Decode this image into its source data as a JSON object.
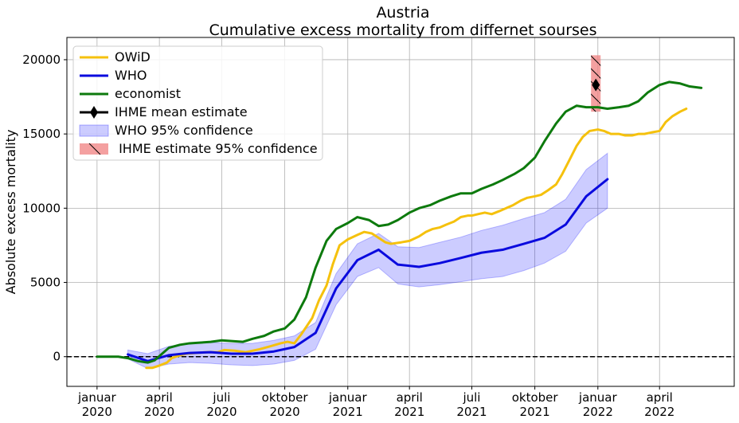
{
  "chart_data": {
    "type": "line",
    "title": "Austria",
    "subtitle": "Cumulative excess mortality from differnet sourses",
    "xlabel": "",
    "ylabel": "Absolute excess mortality",
    "xlim": [
      "2019-11-18",
      "2022-07-19"
    ],
    "ylim": [
      -2000,
      21500
    ],
    "grid": true,
    "legend_position": "top-left",
    "x_ticks": [
      {
        "date": "2020-01-01",
        "label": "januar\n2020"
      },
      {
        "date": "2020-04-01",
        "label": "april\n2020"
      },
      {
        "date": "2020-07-01",
        "label": "juli\n2020"
      },
      {
        "date": "2020-10-01",
        "label": "oktober\n2020"
      },
      {
        "date": "2021-01-01",
        "label": "januar\n2021"
      },
      {
        "date": "2021-04-01",
        "label": "april\n2021"
      },
      {
        "date": "2021-07-01",
        "label": "juli\n2021"
      },
      {
        "date": "2021-10-01",
        "label": "oktober\n2021"
      },
      {
        "date": "2022-01-01",
        "label": "januar\n2022"
      },
      {
        "date": "2022-04-01",
        "label": "april\n2022"
      }
    ],
    "y_ticks": [
      0,
      5000,
      10000,
      15000,
      20000
    ],
    "reference_line": {
      "y": 0,
      "style": "dashed",
      "color": "#000000"
    },
    "series": [
      {
        "name": "OWiD",
        "color": "#f5c10d",
        "x": [
          "2020-03-13",
          "2020-03-22",
          "2020-04-01",
          "2020-04-12",
          "2020-04-19",
          "2020-05-01",
          "2020-05-10",
          "2020-05-25",
          "2020-06-10",
          "2020-06-25",
          "2020-07-05",
          "2020-07-20",
          "2020-08-05",
          "2020-08-25",
          "2020-09-10",
          "2020-09-25",
          "2020-10-05",
          "2020-10-15",
          "2020-10-25",
          "2020-11-10",
          "2020-11-20",
          "2020-12-01",
          "2020-12-10",
          "2020-12-20",
          "2021-01-01",
          "2021-01-15",
          "2021-01-25",
          "2021-02-05",
          "2021-02-15",
          "2021-02-25",
          "2021-03-05",
          "2021-03-20",
          "2021-04-01",
          "2021-04-15",
          "2021-04-25",
          "2021-05-05",
          "2021-05-15",
          "2021-05-25",
          "2021-06-05",
          "2021-06-15",
          "2021-06-25",
          "2021-07-01",
          "2021-07-10",
          "2021-07-20",
          "2021-07-30",
          "2021-08-10",
          "2021-08-20",
          "2021-08-30",
          "2021-09-10",
          "2021-09-20",
          "2021-10-01",
          "2021-10-10",
          "2021-10-20",
          "2021-11-01",
          "2021-11-10",
          "2021-11-20",
          "2021-12-01",
          "2021-12-10",
          "2021-12-20",
          "2022-01-01",
          "2022-01-10",
          "2022-01-20",
          "2022-02-01",
          "2022-02-10",
          "2022-02-20",
          "2022-03-01",
          "2022-03-10",
          "2022-03-20",
          "2022-04-01",
          "2022-04-10",
          "2022-04-20",
          "2022-05-01",
          "2022-05-10"
        ],
        "y": [
          -750,
          -750,
          -600,
          -400,
          -100,
          100,
          200,
          250,
          300,
          300,
          450,
          400,
          300,
          500,
          700,
          900,
          1000,
          900,
          1500,
          2600,
          3800,
          4800,
          6200,
          7500,
          7900,
          8200,
          8400,
          8300,
          8000,
          7700,
          7600,
          7700,
          7800,
          8100,
          8400,
          8600,
          8700,
          8900,
          9100,
          9400,
          9500,
          9500,
          9600,
          9700,
          9600,
          9800,
          10000,
          10200,
          10500,
          10700,
          10800,
          10900,
          11200,
          11600,
          12300,
          13200,
          14200,
          14800,
          15200,
          15300,
          15200,
          15000,
          15000,
          14900,
          14900,
          15000,
          15000,
          15100,
          15200,
          15800,
          16200,
          16500,
          16700
        ]
      },
      {
        "name": "WHO",
        "color": "#0a0ade",
        "x": [
          "2020-02-15",
          "2020-03-15",
          "2020-04-15",
          "2020-05-15",
          "2020-06-15",
          "2020-07-15",
          "2020-08-15",
          "2020-09-15",
          "2020-10-15",
          "2020-11-15",
          "2020-12-15",
          "2021-01-15",
          "2021-02-15",
          "2021-03-15",
          "2021-04-15",
          "2021-05-15",
          "2021-06-15",
          "2021-07-15",
          "2021-08-15",
          "2021-09-15",
          "2021-10-15",
          "2021-11-15",
          "2021-12-15",
          "2022-01-15"
        ],
        "y": [
          150,
          -300,
          100,
          250,
          300,
          200,
          200,
          350,
          650,
          1600,
          4600,
          6500,
          7200,
          6200,
          6050,
          6300,
          6650,
          7000,
          7200,
          7600,
          8000,
          8900,
          10800,
          11950
        ]
      },
      {
        "name": "economist",
        "color": "#0d7a0d",
        "x": [
          "2020-01-01",
          "2020-01-15",
          "2020-02-01",
          "2020-02-15",
          "2020-03-01",
          "2020-03-15",
          "2020-03-25",
          "2020-04-05",
          "2020-04-15",
          "2020-05-01",
          "2020-05-15",
          "2020-06-01",
          "2020-06-15",
          "2020-07-01",
          "2020-07-15",
          "2020-08-01",
          "2020-08-15",
          "2020-09-01",
          "2020-09-15",
          "2020-10-01",
          "2020-10-15",
          "2020-11-01",
          "2020-11-15",
          "2020-12-01",
          "2020-12-15",
          "2021-01-01",
          "2021-01-15",
          "2021-02-01",
          "2021-02-15",
          "2021-03-01",
          "2021-03-15",
          "2021-04-01",
          "2021-04-15",
          "2021-05-01",
          "2021-05-15",
          "2021-06-01",
          "2021-06-15",
          "2021-07-01",
          "2021-07-15",
          "2021-08-01",
          "2021-08-15",
          "2021-09-01",
          "2021-09-15",
          "2021-10-01",
          "2021-10-15",
          "2021-11-01",
          "2021-11-15",
          "2021-12-01",
          "2021-12-15",
          "2022-01-01",
          "2022-01-15",
          "2022-02-01",
          "2022-02-15",
          "2022-03-01",
          "2022-03-15",
          "2022-04-01",
          "2022-04-15",
          "2022-05-01",
          "2022-05-15",
          "2022-06-01"
        ],
        "y": [
          0,
          0,
          0,
          -100,
          -300,
          -400,
          -250,
          200,
          600,
          800,
          900,
          950,
          1000,
          1100,
          1050,
          1000,
          1200,
          1400,
          1700,
          1900,
          2500,
          4000,
          6000,
          7800,
          8600,
          9000,
          9400,
          9200,
          8800,
          8900,
          9200,
          9700,
          10000,
          10200,
          10500,
          10800,
          11000,
          11000,
          11300,
          11600,
          11900,
          12300,
          12700,
          13400,
          14500,
          15700,
          16500,
          16900,
          16800,
          16800,
          16700,
          16800,
          16900,
          17200,
          17800,
          18300,
          18500,
          18400,
          18200,
          18100
        ]
      }
    ],
    "bands": [
      {
        "name": "WHO 95% confidence",
        "color": "#0000ff",
        "opacity": 0.2,
        "x": [
          "2020-02-15",
          "2020-03-15",
          "2020-04-15",
          "2020-05-15",
          "2020-06-15",
          "2020-07-15",
          "2020-08-15",
          "2020-09-15",
          "2020-10-15",
          "2020-11-15",
          "2020-12-15",
          "2021-01-15",
          "2021-02-15",
          "2021-03-15",
          "2021-04-15",
          "2021-05-15",
          "2021-06-15",
          "2021-07-15",
          "2021-08-15",
          "2021-09-15",
          "2021-10-15",
          "2021-11-15",
          "2021-12-15",
          "2022-01-15"
        ],
        "low": [
          -150,
          -800,
          -500,
          -400,
          -450,
          -550,
          -600,
          -500,
          -250,
          500,
          3500,
          5400,
          6000,
          4900,
          4700,
          4850,
          5050,
          5250,
          5400,
          5800,
          6300,
          7100,
          9000,
          10000
        ],
        "high": [
          450,
          200,
          700,
          900,
          950,
          900,
          900,
          1100,
          1400,
          2300,
          5600,
          7600,
          8300,
          7400,
          7350,
          7700,
          8050,
          8500,
          8850,
          9300,
          9700,
          10600,
          12600,
          13700
        ]
      },
      {
        "name": " IHME estimate 95% confidence",
        "color": "#f08080",
        "hatch": "\\",
        "x_start": "2021-12-22",
        "x_end": "2022-01-05",
        "low": 16500,
        "high": 20300
      }
    ],
    "points": [
      {
        "name": "IHME mean estimate",
        "date": "2021-12-29",
        "y": 18300,
        "marker": "diamond",
        "color": "#000000"
      }
    ],
    "legend": [
      "OWiD",
      "WHO",
      "economist",
      "IHME mean estimate",
      "WHO 95% confidence",
      " IHME estimate 95% confidence"
    ]
  }
}
